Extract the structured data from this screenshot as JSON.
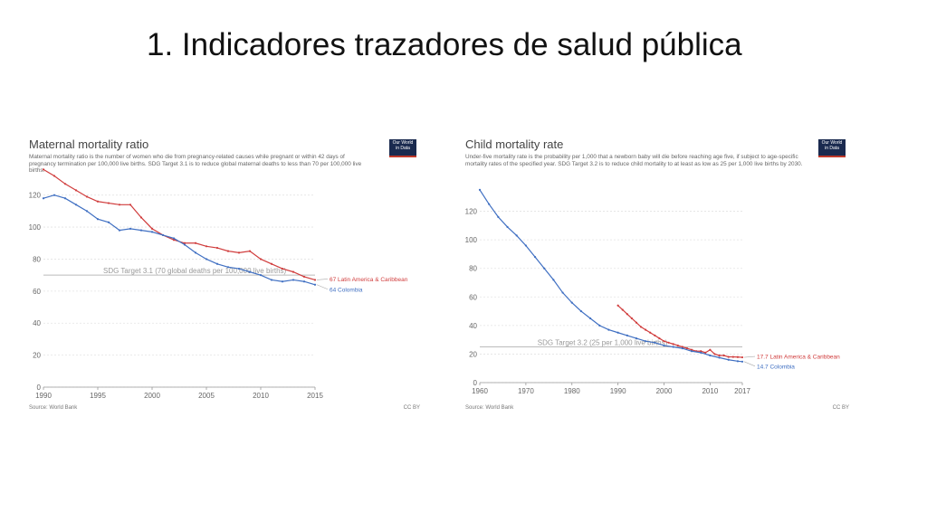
{
  "slide": {
    "title": "1. Indicadores trazadores de salud pública"
  },
  "chart_data": [
    {
      "type": "line",
      "title": "Maternal mortality ratio",
      "subtitle": "Maternal mortality ratio is the number of women who die from pregnancy-related causes while pregnant or within 42 days of pregnancy termination per 100,000 live births. SDG Target 3.1 is to reduce global maternal deaths to less than 70 per 100,000 live births.",
      "logo_text": [
        "Our World",
        "in Data"
      ],
      "xlim": [
        1990,
        2015
      ],
      "ylim": [
        0,
        130
      ],
      "x_ticks": [
        1990,
        1995,
        2000,
        2005,
        2010,
        2015
      ],
      "y_ticks": [
        0,
        20,
        40,
        60,
        80,
        100,
        120
      ],
      "grid": true,
      "target": {
        "value": 70,
        "label": "SDG Target 3.1 (70 global deaths per 100,000 live births)"
      },
      "series": [
        {
          "name": "Latin America & Caribbean",
          "end_label": "67 Latin America & Caribbean",
          "color": "#d03c3c",
          "x": [
            1990,
            1991,
            1992,
            1993,
            1994,
            1995,
            1996,
            1997,
            1998,
            1999,
            2000,
            2001,
            2002,
            2003,
            2004,
            2005,
            2006,
            2007,
            2008,
            2009,
            2010,
            2011,
            2012,
            2013,
            2014,
            2015
          ],
          "y": [
            136,
            132,
            127,
            123,
            119,
            116,
            115,
            114,
            114,
            106,
            99,
            95,
            92,
            90,
            90,
            88,
            87,
            85,
            84,
            85,
            80,
            77,
            74,
            72,
            69,
            67
          ]
        },
        {
          "name": "Colombia",
          "end_label": "64 Colombia",
          "color": "#3f6fc2",
          "x": [
            1990,
            1991,
            1992,
            1993,
            1994,
            1995,
            1996,
            1997,
            1998,
            1999,
            2000,
            2001,
            2002,
            2003,
            2004,
            2005,
            2006,
            2007,
            2008,
            2009,
            2010,
            2011,
            2012,
            2013,
            2014,
            2015
          ],
          "y": [
            118,
            120,
            118,
            114,
            110,
            105,
            103,
            98,
            99,
            98,
            97,
            95,
            93,
            89,
            84,
            80,
            77,
            75,
            74,
            72,
            70,
            67,
            66,
            67,
            66,
            64
          ]
        }
      ],
      "source": "Source: World Bank",
      "license": "CC BY"
    },
    {
      "type": "line",
      "title": "Child mortality rate",
      "subtitle": "Under-five mortality rate is the probability per 1,000 that a newborn baby will die before reaching age five, if subject to age-specific mortality rates of the specified year. SDG Target 3.2 is to reduce child mortality to at least as low as 25 per 1,000 live births by 2030.",
      "logo_text": [
        "Our World",
        "in Data"
      ],
      "xlim": [
        1960,
        2017
      ],
      "ylim": [
        0,
        140
      ],
      "x_ticks": [
        1960,
        1970,
        1980,
        1990,
        2000,
        2010,
        2017
      ],
      "y_ticks": [
        0,
        20,
        40,
        60,
        80,
        100,
        120
      ],
      "grid": true,
      "target": {
        "value": 25,
        "label": "SDG Target 3.2 (25 per 1,000 live births)"
      },
      "series": [
        {
          "name": "Latin America & Caribbean",
          "end_label": "17.7 Latin America & Caribbean",
          "color": "#d03c3c",
          "x": [
            1990,
            1991,
            1992,
            1993,
            1994,
            1995,
            1996,
            1997,
            1998,
            1999,
            2000,
            2001,
            2002,
            2003,
            2004,
            2005,
            2006,
            2007,
            2008,
            2009,
            2010,
            2011,
            2012,
            2013,
            2014,
            2015,
            2016,
            2017
          ],
          "y": [
            54,
            51,
            48,
            45,
            42,
            39,
            37,
            35,
            33,
            31,
            29,
            28,
            27,
            26,
            25,
            24,
            23,
            22,
            22,
            21,
            23,
            20,
            19,
            19,
            18,
            18,
            17.9,
            17.7
          ]
        },
        {
          "name": "Colombia",
          "end_label": "14.7 Colombia",
          "color": "#3f6fc2",
          "x": [
            1960,
            1962,
            1964,
            1966,
            1968,
            1970,
            1972,
            1974,
            1976,
            1978,
            1980,
            1982,
            1984,
            1986,
            1988,
            1990,
            1992,
            1994,
            1996,
            1998,
            2000,
            2002,
            2004,
            2006,
            2008,
            2010,
            2012,
            2014,
            2016,
            2017
          ],
          "y": [
            135,
            125,
            116,
            109,
            103,
            96,
            88,
            80,
            72,
            63,
            56,
            50,
            45,
            40,
            37,
            35,
            33,
            31,
            29,
            28,
            26,
            25,
            24,
            22,
            21,
            19,
            17.5,
            16,
            15,
            14.7
          ]
        }
      ],
      "source": "Source: World Bank",
      "license": "CC BY"
    }
  ]
}
